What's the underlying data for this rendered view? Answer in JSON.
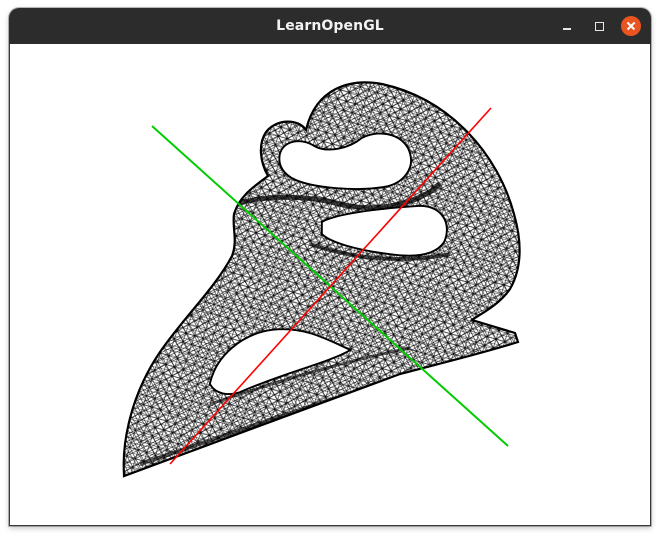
{
  "window": {
    "title": "LearnOpenGL"
  },
  "controls": {
    "minimize_icon": "minimize-icon",
    "maximize_icon": "maximize-icon",
    "close_icon": "close-icon"
  },
  "scene": {
    "render_mode": "wireframe",
    "mesh_color": "#000000",
    "background_color": "#ffffff",
    "axes": [
      {
        "name": "x-axis",
        "color": "#ff0000"
      },
      {
        "name": "y-axis",
        "color": "#00cc00"
      }
    ]
  },
  "colors": {
    "titlebar": "#2c2c2c",
    "title_text": "#f2f2f2",
    "close_button": "#e95420"
  }
}
